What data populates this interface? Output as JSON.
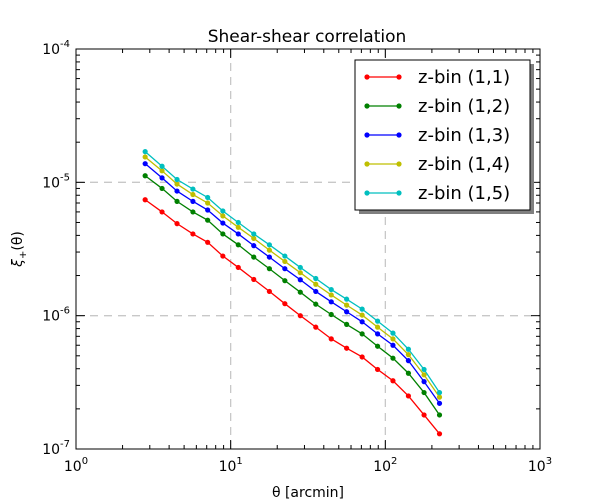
{
  "chart_data": {
    "type": "line",
    "title": "Shear-shear correlation",
    "xlabel": "θ [arcmin]",
    "ylabel_base": "ξ",
    "ylabel_sub": "+",
    "ylabel_arg": "(θ)",
    "xscale": "log",
    "yscale": "log",
    "xlim": [
      1,
      1000
    ],
    "ylim": [
      1e-07,
      0.0001
    ],
    "grid": true,
    "legend_position": "top-right",
    "x_ticks": [
      {
        "value": 1,
        "base": "10",
        "exp": "0"
      },
      {
        "value": 10,
        "base": "10",
        "exp": "1"
      },
      {
        "value": 100,
        "base": "10",
        "exp": "2"
      },
      {
        "value": 1000,
        "base": "10",
        "exp": "3"
      }
    ],
    "y_ticks": [
      {
        "value": 1e-07,
        "base": "10",
        "exp": "-7"
      },
      {
        "value": 1e-06,
        "base": "10",
        "exp": "-6"
      },
      {
        "value": 1e-05,
        "base": "10",
        "exp": "-5"
      },
      {
        "value": 0.0001,
        "base": "10",
        "exp": "-4"
      }
    ],
    "x": [
      2.8,
      3.6,
      4.5,
      5.7,
      7.1,
      8.9,
      11.2,
      14.1,
      17.8,
      22.4,
      28.2,
      35.5,
      44.7,
      56.2,
      70.8,
      89.1,
      112,
      141,
      178,
      224
    ],
    "series": [
      {
        "name": "z-bin (1,1)",
        "color": "#ff0000",
        "values": [
          7.4e-06,
          6e-06,
          4.9e-06,
          4.1e-06,
          3.55e-06,
          2.8e-06,
          2.3e-06,
          1.87e-06,
          1.52e-06,
          1.23e-06,
          1e-06,
          8.2e-07,
          6.7e-07,
          5.7e-07,
          4.9e-07,
          3.95e-07,
          3.25e-07,
          2.5e-07,
          1.8e-07,
          1.3e-07
        ]
      },
      {
        "name": "z-bin (1,2)",
        "color": "#008000",
        "values": [
          1.12e-05,
          9e-06,
          7.2e-06,
          6e-06,
          5.2e-06,
          4.1e-06,
          3.4e-06,
          2.75e-06,
          2.25e-06,
          1.83e-06,
          1.5e-06,
          1.22e-06,
          1.02e-06,
          8.6e-07,
          7.3e-07,
          5.9e-07,
          4.8e-07,
          3.7e-07,
          2.65e-07,
          1.8e-07
        ]
      },
      {
        "name": "z-bin (1,3)",
        "color": "#0000ff",
        "values": [
          1.38e-05,
          1.08e-05,
          8.6e-06,
          7.2e-06,
          6.2e-06,
          4.95e-06,
          4.1e-06,
          3.35e-06,
          2.75e-06,
          2.25e-06,
          1.86e-06,
          1.52e-06,
          1.27e-06,
          1.07e-06,
          9e-07,
          7.3e-07,
          6e-07,
          4.6e-07,
          3.2e-07,
          2.2e-07
        ]
      },
      {
        "name": "z-bin (1,4)",
        "color": "#bfbf00",
        "values": [
          1.55e-05,
          1.22e-05,
          9.7e-06,
          8.1e-06,
          7e-06,
          5.6e-06,
          4.6e-06,
          3.8e-06,
          3.1e-06,
          2.55e-06,
          2.1e-06,
          1.72e-06,
          1.43e-06,
          1.2e-06,
          1.01e-06,
          8.2e-07,
          6.7e-07,
          5.1e-07,
          3.6e-07,
          2.45e-07
        ]
      },
      {
        "name": "z-bin (1,5)",
        "color": "#00bfbf",
        "values": [
          1.7e-05,
          1.32e-05,
          1.05e-05,
          8.9e-06,
          7.7e-06,
          6.1e-06,
          5e-06,
          4.1e-06,
          3.4e-06,
          2.8e-06,
          2.3e-06,
          1.9e-06,
          1.57e-06,
          1.33e-06,
          1.12e-06,
          9.1e-07,
          7.4e-07,
          5.6e-07,
          3.95e-07,
          2.65e-07
        ]
      }
    ]
  }
}
